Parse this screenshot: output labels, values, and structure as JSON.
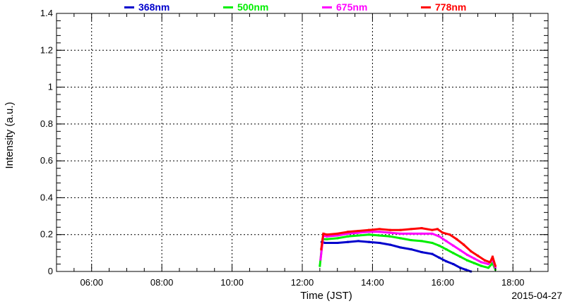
{
  "chart_data": {
    "type": "scatter",
    "title": "",
    "xlabel": "Time (JST)",
    "ylabel": "Intensity (a.u.)",
    "date": "2015-04-27",
    "x_unit": "hours (JST)",
    "xlim": [
      5.0,
      19.0
    ],
    "ylim": [
      0,
      1.4
    ],
    "x_ticks": [
      6,
      8,
      10,
      12,
      14,
      16,
      18
    ],
    "x_tick_labels": [
      "06:00",
      "08:00",
      "10:00",
      "12:00",
      "14:00",
      "16:00",
      "18:00"
    ],
    "y_ticks": [
      0,
      0.2,
      0.4,
      0.6,
      0.8,
      1.0,
      1.2,
      1.4
    ],
    "y_tick_labels": [
      "0",
      "0.2",
      "0.4",
      "0.6",
      "0.8",
      "1",
      "1.2",
      "1.4"
    ],
    "grid": true,
    "legend_position": "top",
    "series": [
      {
        "name": "368nm",
        "color": "#0000cc",
        "x": [
          12.55,
          12.65,
          13.0,
          13.3,
          13.6,
          13.9,
          14.2,
          14.5,
          14.8,
          15.1,
          15.4,
          15.7,
          15.9,
          16.1,
          16.3,
          16.5,
          16.65,
          16.8
        ],
        "y": [
          0.16,
          0.155,
          0.155,
          0.16,
          0.165,
          0.16,
          0.155,
          0.145,
          0.13,
          0.12,
          0.105,
          0.095,
          0.075,
          0.055,
          0.04,
          0.02,
          0.01,
          0.0
        ]
      },
      {
        "name": "500nm",
        "color": "#00ee00",
        "x": [
          12.5,
          12.58,
          12.7,
          13.0,
          13.3,
          13.6,
          13.9,
          14.2,
          14.5,
          14.8,
          15.1,
          15.4,
          15.7,
          15.9,
          16.1,
          16.3,
          16.5,
          16.7,
          16.9,
          17.1,
          17.3,
          17.42,
          17.5
        ],
        "y": [
          0.03,
          0.175,
          0.175,
          0.18,
          0.19,
          0.195,
          0.2,
          0.195,
          0.19,
          0.18,
          0.17,
          0.165,
          0.155,
          0.14,
          0.12,
          0.1,
          0.08,
          0.06,
          0.045,
          0.03,
          0.02,
          0.045,
          0.01
        ]
      },
      {
        "name": "675nm",
        "color": "#ff00ff",
        "x": [
          12.52,
          12.6,
          12.7,
          13.0,
          13.3,
          13.6,
          13.9,
          14.2,
          14.5,
          14.8,
          15.1,
          15.4,
          15.7,
          15.9,
          16.1,
          16.3,
          16.5,
          16.7,
          16.9,
          17.1,
          17.3,
          17.42,
          17.5
        ],
        "y": [
          0.065,
          0.195,
          0.19,
          0.195,
          0.205,
          0.21,
          0.215,
          0.215,
          0.21,
          0.205,
          0.205,
          0.205,
          0.205,
          0.19,
          0.165,
          0.14,
          0.115,
          0.09,
          0.07,
          0.05,
          0.04,
          0.065,
          0.02
        ]
      },
      {
        "name": "778nm",
        "color": "#ff0000",
        "x": [
          12.54,
          12.6,
          12.7,
          13.0,
          13.3,
          13.6,
          13.9,
          14.2,
          14.5,
          14.8,
          15.1,
          15.4,
          15.7,
          15.85,
          16.0,
          16.2,
          16.4,
          16.6,
          16.8,
          17.0,
          17.2,
          17.35,
          17.42,
          17.5
        ],
        "y": [
          0.12,
          0.205,
          0.2,
          0.205,
          0.215,
          0.22,
          0.225,
          0.23,
          0.225,
          0.225,
          0.23,
          0.235,
          0.225,
          0.23,
          0.21,
          0.2,
          0.175,
          0.145,
          0.11,
          0.085,
          0.06,
          0.05,
          0.08,
          0.03
        ]
      }
    ]
  }
}
